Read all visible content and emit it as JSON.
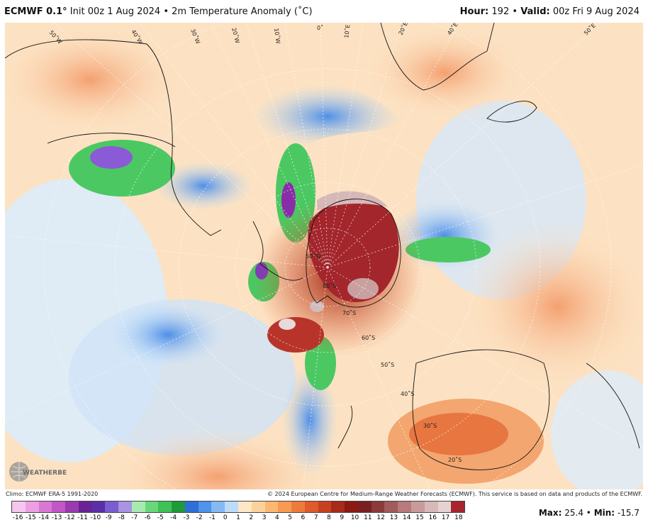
{
  "header": {
    "brand": "ECMWF 0.1",
    "degree": "°",
    "init": "Init 00z 1 Aug 2024",
    "bullet": "•",
    "field": "2m Temperature Anomaly (˚C)",
    "hour_label": "Hour:",
    "hour_value": "192",
    "valid_label": "Valid:",
    "valid_value": "00z Fri 9 Aug 2024"
  },
  "footer": {
    "climo": "Climo: ECMWF ERA-5 1991-2020",
    "copyright": "© 2024 European Centre for Medium-Range Weather Forecasts (ECMWF). This service is based on data and products of the ECMWF."
  },
  "logo": {
    "text": "WEATHERBELL",
    "icon": "weatherbell-globe-logo"
  },
  "colorbar": {
    "labels": [
      "-16",
      "-15",
      "-14",
      "-13",
      "-12",
      "-11",
      "-10",
      "-9",
      "-8",
      "-7",
      "-6",
      "-5",
      "-4",
      "-3",
      "-2",
      "-1",
      "0",
      "1",
      "2",
      "3",
      "4",
      "5",
      "6",
      "7",
      "8",
      "9",
      "10",
      "11",
      "12",
      "13",
      "14",
      "15",
      "16",
      "17",
      "18"
    ],
    "colors": [
      "#f7c6ef",
      "#ec9fe2",
      "#d977d4",
      "#c256c6",
      "#9b3aae",
      "#6a2396",
      "#5a2fa8",
      "#7a5ed0",
      "#a894e2",
      "#a7eab0",
      "#6ad67a",
      "#3cc256",
      "#1f9a3a",
      "#2b6fd8",
      "#4f93ea",
      "#84b9f4",
      "#bcdcfa",
      "#fde7c4",
      "#fdd29a",
      "#fcb872",
      "#f89a52",
      "#ee7a3a",
      "#e05a2a",
      "#c8401e",
      "#a82a18",
      "#8a1a12",
      "#7a2020",
      "#8c3a3a",
      "#a35a5a",
      "#b87a7a",
      "#c99a9a",
      "#d8b8b8",
      "#e6d2d2",
      "#a8242c"
    ]
  },
  "stats": {
    "max_label": "Max:",
    "max": "25.4",
    "min_label": "Min:",
    "min": "-15.7",
    "bullet": "•"
  },
  "map": {
    "grid_labels": {
      "lon_50w": "50˚W",
      "lon_40w": "40˚W",
      "lon_30w": "30˚W",
      "lon_20w": "20˚W",
      "lon_10w": "10˚W",
      "lon_0": "0˚",
      "lon_10e": "10˚E",
      "lon_20e": "20˚E",
      "lon_40e": "40˚E",
      "lon_50e": "50˚E",
      "center_50w": "50˚W",
      "lat_80s": "80˚S",
      "lat_70s": "70˚S",
      "lat_60s": "60˚S",
      "lat_50s": "50˚S",
      "lat_40s": "40˚S",
      "lat_30s": "30˚S",
      "lat_20s": "20˚S"
    }
  }
}
